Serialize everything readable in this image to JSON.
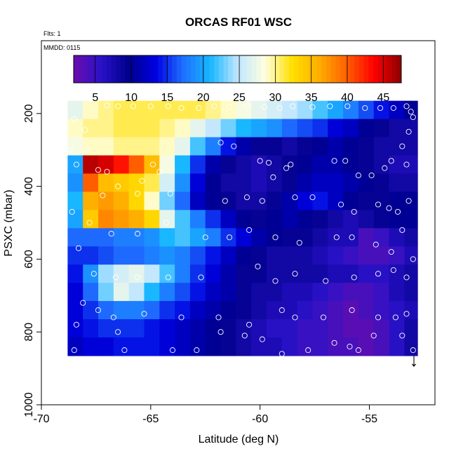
{
  "chart_data": {
    "type": "heatmap",
    "title": "ORCAS RF01 WSC",
    "subtitle_top": "Flts: 1",
    "subtitle_panel": "MMDD: 0115",
    "xlabel": "Latitude (deg N)",
    "ylabel": "PSXC (mbar)",
    "xlim": [
      -70,
      -52
    ],
    "ylim": [
      1000,
      0
    ],
    "x_ticks": [
      -70,
      -65,
      -60,
      -55
    ],
    "y_ticks": [
      200,
      400,
      600,
      800,
      1000
    ],
    "colorbar": {
      "range": [
        2,
        47.5
      ],
      "ticks": [
        5,
        10,
        15,
        20,
        25,
        30,
        35,
        40,
        45
      ],
      "colors": [
        "#6a0dad",
        "#2a12c8",
        "#00008b",
        "#0000e0",
        "#1f6fff",
        "#17b6ff",
        "#bfe6ff",
        "#ffffe0",
        "#ffe000",
        "#ffad00",
        "#ff6000",
        "#ff0000",
        "#8b0000"
      ]
    },
    "grid": false,
    "x_edges": [
      -68.8,
      -68.1,
      -67.4,
      -66.7,
      -66.0,
      -65.3,
      -64.6,
      -63.9,
      -63.2,
      -62.5,
      -61.8,
      -61.1,
      -60.4,
      -59.7,
      -59.0,
      -58.3,
      -57.6,
      -56.9,
      -56.2,
      -55.5,
      -54.8,
      -54.1,
      -53.4,
      -52.8
    ],
    "p_edges": [
      165,
      215,
      265,
      315,
      365,
      415,
      465,
      515,
      565,
      615,
      665,
      715,
      765,
      815,
      865
    ],
    "rows": [
      [
        27,
        29,
        30,
        31,
        31,
        31,
        31,
        31,
        31,
        30,
        29,
        28,
        27,
        26,
        25,
        24,
        22,
        20,
        18,
        16,
        14,
        12,
        10
      ],
      [
        29,
        30,
        30,
        31,
        31,
        31,
        30,
        29,
        27,
        25,
        23,
        21,
        20,
        19,
        17,
        16,
        15,
        13,
        12,
        10,
        9,
        8,
        8
      ],
      [
        28,
        29,
        29,
        30,
        30,
        30,
        29,
        27,
        22,
        18,
        14,
        11,
        9,
        9,
        8,
        9,
        10,
        11,
        10,
        9,
        8,
        8,
        8
      ],
      [
        20,
        46,
        45,
        43,
        40,
        35,
        28,
        21,
        15,
        11,
        9,
        8,
        7,
        8,
        9,
        10,
        11,
        11,
        10,
        9,
        8,
        7,
        7
      ],
      [
        19,
        40,
        35,
        34,
        33,
        31,
        26,
        19,
        13,
        10,
        8,
        8,
        7,
        8,
        9,
        11,
        12,
        12,
        11,
        10,
        9,
        8,
        8
      ],
      [
        21,
        36,
        37,
        36,
        33,
        29,
        23,
        17,
        12,
        10,
        9,
        8,
        8,
        9,
        11,
        13,
        14,
        12,
        10,
        9,
        9,
        10,
        10
      ],
      [
        20,
        34,
        38,
        37,
        36,
        33,
        27,
        22,
        18,
        15,
        12,
        10,
        9,
        10,
        11,
        10,
        9,
        8,
        7,
        8,
        9,
        10,
        10
      ],
      [
        17,
        17,
        17,
        18,
        18,
        19,
        21,
        22,
        20,
        18,
        15,
        13,
        11,
        10,
        9,
        9,
        8,
        7,
        7,
        4,
        5,
        7,
        8
      ],
      [
        15,
        15,
        16,
        17,
        17,
        18,
        19,
        18,
        16,
        14,
        12,
        10,
        9,
        8,
        8,
        8,
        7,
        6,
        5,
        4,
        4,
        5,
        7
      ],
      [
        14,
        19,
        24,
        26,
        27,
        25,
        22,
        18,
        15,
        13,
        11,
        9,
        9,
        8,
        8,
        8,
        8,
        7,
        7,
        6,
        6,
        7,
        8
      ],
      [
        13,
        17,
        23,
        27,
        25,
        21,
        18,
        16,
        14,
        12,
        11,
        9,
        8,
        8,
        7,
        7,
        6,
        5,
        4,
        4,
        5,
        7,
        8
      ],
      [
        13,
        15,
        17,
        18,
        18,
        17,
        15,
        14,
        12,
        11,
        10,
        9,
        8,
        7,
        7,
        6,
        5,
        4,
        3,
        4,
        5,
        6,
        7
      ],
      [
        13,
        14,
        15,
        15,
        15,
        14,
        13,
        12,
        11,
        10,
        9,
        8,
        7,
        6,
        6,
        5,
        5,
        4,
        3,
        3,
        4,
        6,
        8
      ],
      [
        12,
        13,
        13,
        14,
        14,
        14,
        13,
        12,
        11,
        10,
        9,
        8,
        7,
        7,
        6,
        5,
        5,
        4,
        4,
        3,
        4,
        6,
        8
      ]
    ],
    "points": [
      [
        -68.5,
        215
      ],
      [
        -68.0,
        245
      ],
      [
        -67.0,
        178
      ],
      [
        -66.5,
        180
      ],
      [
        -65.8,
        180
      ],
      [
        -65.0,
        180
      ],
      [
        -64.2,
        180
      ],
      [
        -63.6,
        185
      ],
      [
        -62.8,
        185
      ],
      [
        -62.1,
        180
      ],
      [
        -61.4,
        182
      ],
      [
        -60.6,
        180
      ],
      [
        -59.8,
        182
      ],
      [
        -59.1,
        185
      ],
      [
        -58.5,
        180
      ],
      [
        -57.6,
        182
      ],
      [
        -56.8,
        180
      ],
      [
        -56.0,
        180
      ],
      [
        -55.2,
        185
      ],
      [
        -54.5,
        185
      ],
      [
        -53.9,
        185
      ],
      [
        -53.3,
        180
      ],
      [
        -53.1,
        195
      ],
      [
        -53.0,
        210
      ],
      [
        -53.2,
        250
      ],
      [
        -53.5,
        290
      ],
      [
        -68.7,
        300
      ],
      [
        -67.9,
        300
      ],
      [
        -67.4,
        355
      ],
      [
        -67.0,
        360
      ],
      [
        -65.4,
        385
      ],
      [
        -64.9,
        340
      ],
      [
        -64.6,
        360
      ],
      [
        -61.8,
        280
      ],
      [
        -61.2,
        290
      ],
      [
        -60.0,
        330
      ],
      [
        -59.6,
        335
      ],
      [
        -59.4,
        375
      ],
      [
        -58.8,
        350
      ],
      [
        -58.6,
        340
      ],
      [
        -56.6,
        330
      ],
      [
        -56.1,
        330
      ],
      [
        -55.5,
        370
      ],
      [
        -54.9,
        370
      ],
      [
        -54.3,
        350
      ],
      [
        -54.0,
        330
      ],
      [
        -53.3,
        340
      ],
      [
        -68.4,
        340
      ],
      [
        -67.2,
        425
      ],
      [
        -66.5,
        400
      ],
      [
        -65.6,
        420
      ],
      [
        -64.9,
        450
      ],
      [
        -64.1,
        420
      ],
      [
        -61.6,
        440
      ],
      [
        -60.6,
        430
      ],
      [
        -59.9,
        440
      ],
      [
        -58.4,
        430
      ],
      [
        -57.6,
        430
      ],
      [
        -56.3,
        450
      ],
      [
        -55.7,
        470
      ],
      [
        -54.6,
        450
      ],
      [
        -54.1,
        460
      ],
      [
        -53.7,
        470
      ],
      [
        -53.2,
        440
      ],
      [
        -68.6,
        470
      ],
      [
        -67.8,
        500
      ],
      [
        -66.8,
        530
      ],
      [
        -65.6,
        530
      ],
      [
        -64.3,
        500
      ],
      [
        -62.5,
        540
      ],
      [
        -61.4,
        540
      ],
      [
        -60.5,
        520
      ],
      [
        -59.3,
        540
      ],
      [
        -58.2,
        555
      ],
      [
        -56.5,
        540
      ],
      [
        -55.8,
        540
      ],
      [
        -54.7,
        560
      ],
      [
        -54.0,
        580
      ],
      [
        -53.5,
        520
      ],
      [
        -68.3,
        570
      ],
      [
        -67.6,
        640
      ],
      [
        -66.6,
        650
      ],
      [
        -65.6,
        650
      ],
      [
        -64.2,
        650
      ],
      [
        -62.7,
        650
      ],
      [
        -60.1,
        620
      ],
      [
        -59.3,
        660
      ],
      [
        -58.4,
        640
      ],
      [
        -57.0,
        660
      ],
      [
        -55.7,
        650
      ],
      [
        -54.6,
        640
      ],
      [
        -53.9,
        630
      ],
      [
        -53.3,
        650
      ],
      [
        -53.0,
        600
      ],
      [
        -68.1,
        720
      ],
      [
        -67.4,
        740
      ],
      [
        -66.7,
        760
      ],
      [
        -65.3,
        750
      ],
      [
        -63.6,
        760
      ],
      [
        -61.9,
        760
      ],
      [
        -60.5,
        780
      ],
      [
        -59.0,
        740
      ],
      [
        -58.4,
        760
      ],
      [
        -57.1,
        760
      ],
      [
        -55.8,
        740
      ],
      [
        -54.6,
        760
      ],
      [
        -53.8,
        760
      ],
      [
        -53.3,
        750
      ],
      [
        -68.5,
        850
      ],
      [
        -68.4,
        780
      ],
      [
        -66.5,
        800
      ],
      [
        -66.2,
        850
      ],
      [
        -64.0,
        850
      ],
      [
        -62.9,
        850
      ],
      [
        -61.8,
        800
      ],
      [
        -60.7,
        810
      ],
      [
        -59.9,
        820
      ],
      [
        -59.0,
        860
      ],
      [
        -57.8,
        850
      ],
      [
        -56.6,
        830
      ],
      [
        -55.9,
        840
      ],
      [
        -55.5,
        850
      ],
      [
        -54.8,
        810
      ],
      [
        -53.5,
        810
      ],
      [
        -53.0,
        850
      ]
    ],
    "annotation": "↓"
  }
}
